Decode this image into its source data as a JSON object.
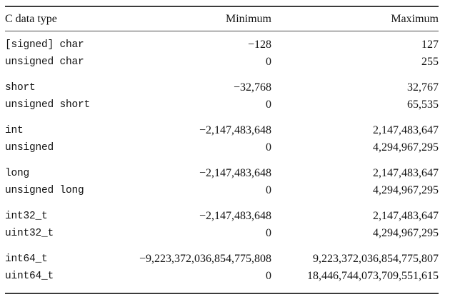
{
  "page": {
    "background": "#ffffff",
    "text_color": "#121212",
    "rule_color": "#3c3c3c"
  },
  "table": {
    "columns": [
      {
        "label": "C data type",
        "align": "left"
      },
      {
        "label": "Minimum",
        "align": "right"
      },
      {
        "label": "Maximum",
        "align": "right"
      }
    ],
    "groups": [
      {
        "rows": [
          {
            "type": "[signed] char",
            "min": "−128",
            "max": "127"
          },
          {
            "type": "unsigned char",
            "min": "0",
            "max": "255"
          }
        ]
      },
      {
        "rows": [
          {
            "type": "short",
            "min": "−32,768",
            "max": "32,767"
          },
          {
            "type": "unsigned short",
            "min": "0",
            "max": "65,535"
          }
        ]
      },
      {
        "rows": [
          {
            "type": "int",
            "min": "−2,147,483,648",
            "max": "2,147,483,647"
          },
          {
            "type": "unsigned",
            "min": "0",
            "max": "4,294,967,295"
          }
        ]
      },
      {
        "rows": [
          {
            "type": "long",
            "min": "−2,147,483,648",
            "max": "2,147,483,647"
          },
          {
            "type": "unsigned long",
            "min": "0",
            "max": "4,294,967,295"
          }
        ]
      },
      {
        "rows": [
          {
            "type": "int32_t",
            "min": "−2,147,483,648",
            "max": "2,147,483,647"
          },
          {
            "type": "uint32_t",
            "min": "0",
            "max": "4,294,967,295"
          }
        ]
      },
      {
        "rows": [
          {
            "type": "int64_t",
            "min": "−9,223,372,036,854,775,808",
            "max": "9,223,372,036,854,775,807"
          },
          {
            "type": "uint64_t",
            "min": "0",
            "max": "18,446,744,073,709,551,615"
          }
        ]
      }
    ]
  }
}
